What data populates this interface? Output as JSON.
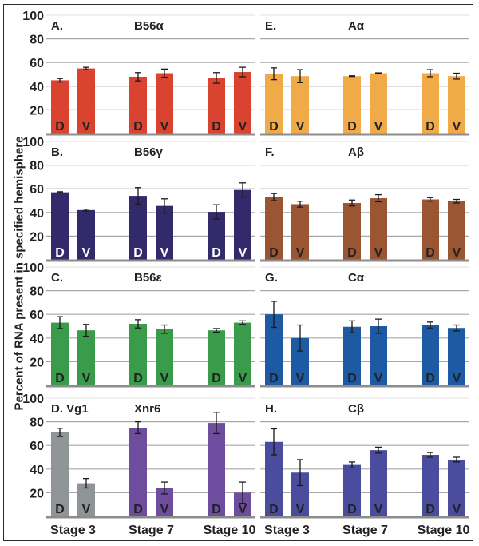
{
  "chart_data": {
    "type": "bar",
    "ylabel": "Percent of RNA present in specified hemisphere",
    "ylim": [
      0,
      100
    ],
    "yticks": [
      20,
      40,
      60,
      80,
      100
    ],
    "grid": true,
    "stages": [
      "Stage 3",
      "Stage 7",
      "Stage 10"
    ],
    "bar_labels": [
      "D",
      "V"
    ],
    "panels": [
      {
        "id": "A.",
        "title": "B56α",
        "column": "left",
        "row": 0,
        "color": "#d9432f",
        "label_color": "#222222",
        "D": [
          45,
          48,
          47
        ],
        "V": [
          55,
          51,
          52
        ],
        "D_err": [
          1.5,
          3.5,
          4.5
        ],
        "V_err": [
          1,
          3.5,
          4
        ]
      },
      {
        "id": "B.",
        "title": "B56γ",
        "column": "left",
        "row": 1,
        "color": "#332a6b",
        "label_color": "#ffffff",
        "D": [
          57,
          54,
          40.5
        ],
        "V": [
          42,
          45.5,
          59
        ],
        "D_err": [
          0.5,
          7,
          6
        ],
        "V_err": [
          0.8,
          6,
          6
        ]
      },
      {
        "id": "C.",
        "title": "B56ε",
        "column": "left",
        "row": 2,
        "color": "#3a9c4a",
        "label_color": "#222222",
        "D": [
          53,
          52,
          46.5
        ],
        "V": [
          46.5,
          47.5,
          53
        ],
        "D_err": [
          5,
          3.5,
          1.5
        ],
        "V_err": [
          5,
          3.5,
          1.5
        ]
      },
      {
        "id": "D. Vg1",
        "title": "Xnr6",
        "column": "left",
        "row": 3,
        "colors": [
          "#8f9597",
          "#6e4c9e",
          "#6e4c9e"
        ],
        "label_color": "#222222",
        "D": [
          71,
          75,
          79
        ],
        "V": [
          28,
          24,
          20
        ],
        "D_err": [
          3.5,
          5,
          9
        ],
        "V_err": [
          4,
          5,
          9
        ]
      },
      {
        "id": "E.",
        "title": "Aα",
        "column": "right",
        "row": 0,
        "color": "#f0aa48",
        "label_color": "#222222",
        "D": [
          50.5,
          48.5,
          51
        ],
        "V": [
          48.5,
          51,
          48.5
        ],
        "D_err": [
          5,
          0.3,
          3
        ],
        "V_err": [
          5.5,
          0.3,
          2.5
        ]
      },
      {
        "id": "F.",
        "title": "Aβ",
        "column": "right",
        "row": 1,
        "color": "#9a5633",
        "label_color": "#222222",
        "D": [
          53,
          48,
          51
        ],
        "V": [
          47,
          52,
          49.5
        ],
        "D_err": [
          3,
          2.5,
          1.5
        ],
        "V_err": [
          2.5,
          3,
          1.5
        ]
      },
      {
        "id": "G.",
        "title": "Cα",
        "column": "right",
        "row": 2,
        "color": "#1d5aa3",
        "label_color": "#222222",
        "D": [
          60,
          49.5,
          51
        ],
        "V": [
          40,
          50,
          48.5
        ],
        "D_err": [
          11,
          5,
          2.5
        ],
        "V_err": [
          11,
          6,
          2.5
        ]
      },
      {
        "id": "H.",
        "title": "Cβ",
        "column": "right",
        "row": 3,
        "color": "#4a4c9e",
        "label_color": "#222222",
        "D": [
          63,
          43.5,
          52
        ],
        "V": [
          37,
          56,
          48
        ],
        "D_err": [
          11,
          2.5,
          2
        ],
        "V_err": [
          11,
          2.5,
          2
        ]
      }
    ]
  }
}
